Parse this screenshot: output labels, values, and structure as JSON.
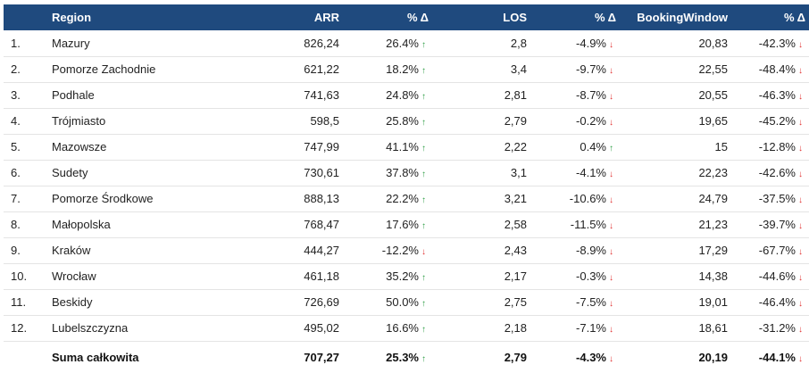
{
  "columns": [
    "",
    "Region",
    "ARR",
    "% Δ",
    "LOS",
    "% Δ",
    "BookingWindow",
    "% Δ"
  ],
  "colors": {
    "header_bg": "#1f4a7e",
    "up": "#2e9e45",
    "down": "#e03030"
  },
  "rows": [
    {
      "num": "1.",
      "region": "Mazury",
      "arr": "826,24",
      "arr_pct": "26.4%",
      "arr_dir": "up",
      "los": "2,8",
      "los_pct": "-4.9%",
      "los_dir": "down",
      "bw": "20,83",
      "bw_pct": "-42.3%",
      "bw_dir": "down"
    },
    {
      "num": "2.",
      "region": "Pomorze Zachodnie",
      "arr": "621,22",
      "arr_pct": "18.2%",
      "arr_dir": "up",
      "los": "3,4",
      "los_pct": "-9.7%",
      "los_dir": "down",
      "bw": "22,55",
      "bw_pct": "-48.4%",
      "bw_dir": "down"
    },
    {
      "num": "3.",
      "region": "Podhale",
      "arr": "741,63",
      "arr_pct": "24.8%",
      "arr_dir": "up",
      "los": "2,81",
      "los_pct": "-8.7%",
      "los_dir": "down",
      "bw": "20,55",
      "bw_pct": "-46.3%",
      "bw_dir": "down"
    },
    {
      "num": "4.",
      "region": "Trójmiasto",
      "arr": "598,5",
      "arr_pct": "25.8%",
      "arr_dir": "up",
      "los": "2,79",
      "los_pct": "-0.2%",
      "los_dir": "down",
      "bw": "19,65",
      "bw_pct": "-45.2%",
      "bw_dir": "down"
    },
    {
      "num": "5.",
      "region": "Mazowsze",
      "arr": "747,99",
      "arr_pct": "41.1%",
      "arr_dir": "up",
      "los": "2,22",
      "los_pct": "0.4%",
      "los_dir": "up",
      "bw": "15",
      "bw_pct": "-12.8%",
      "bw_dir": "down"
    },
    {
      "num": "6.",
      "region": "Sudety",
      "arr": "730,61",
      "arr_pct": "37.8%",
      "arr_dir": "up",
      "los": "3,1",
      "los_pct": "-4.1%",
      "los_dir": "down",
      "bw": "22,23",
      "bw_pct": "-42.6%",
      "bw_dir": "down"
    },
    {
      "num": "7.",
      "region": "Pomorze Środkowe",
      "arr": "888,13",
      "arr_pct": "22.2%",
      "arr_dir": "up",
      "los": "3,21",
      "los_pct": "-10.6%",
      "los_dir": "down",
      "bw": "24,79",
      "bw_pct": "-37.5%",
      "bw_dir": "down"
    },
    {
      "num": "8.",
      "region": "Małopolska",
      "arr": "768,47",
      "arr_pct": "17.6%",
      "arr_dir": "up",
      "los": "2,58",
      "los_pct": "-11.5%",
      "los_dir": "down",
      "bw": "21,23",
      "bw_pct": "-39.7%",
      "bw_dir": "down"
    },
    {
      "num": "9.",
      "region": "Kraków",
      "arr": "444,27",
      "arr_pct": "-12.2%",
      "arr_dir": "down",
      "los": "2,43",
      "los_pct": "-8.9%",
      "los_dir": "down",
      "bw": "17,29",
      "bw_pct": "-67.7%",
      "bw_dir": "down"
    },
    {
      "num": "10.",
      "region": "Wrocław",
      "arr": "461,18",
      "arr_pct": "35.2%",
      "arr_dir": "up",
      "los": "2,17",
      "los_pct": "-0.3%",
      "los_dir": "down",
      "bw": "14,38",
      "bw_pct": "-44.6%",
      "bw_dir": "down"
    },
    {
      "num": "11.",
      "region": "Beskidy",
      "arr": "726,69",
      "arr_pct": "50.0%",
      "arr_dir": "up",
      "los": "2,75",
      "los_pct": "-7.5%",
      "los_dir": "down",
      "bw": "19,01",
      "bw_pct": "-46.4%",
      "bw_dir": "down"
    },
    {
      "num": "12.",
      "region": "Lubelszczyzna",
      "arr": "495,02",
      "arr_pct": "16.6%",
      "arr_dir": "up",
      "los": "2,18",
      "los_pct": "-7.1%",
      "los_dir": "down",
      "bw": "18,61",
      "bw_pct": "-31.2%",
      "bw_dir": "down"
    }
  ],
  "total": {
    "label": "Suma całkowita",
    "arr": "707,27",
    "arr_pct": "25.3%",
    "arr_dir": "up",
    "los": "2,79",
    "los_pct": "-4.3%",
    "los_dir": "down",
    "bw": "20,19",
    "bw_pct": "-44.1%",
    "bw_dir": "down"
  }
}
